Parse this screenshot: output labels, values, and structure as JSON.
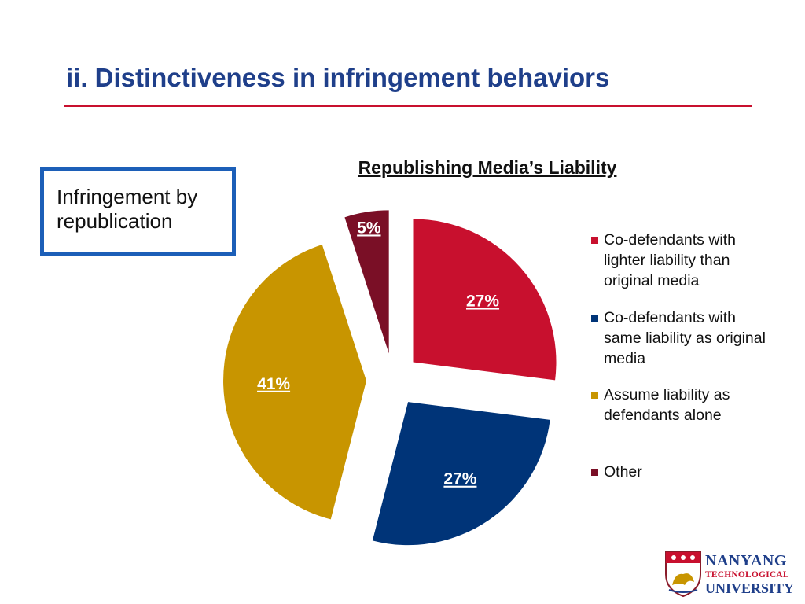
{
  "slide": {
    "title": "ii.   Distinctiveness in infringement behaviors",
    "callout_text": "Infringement by republication",
    "logo": {
      "line1": "NANYANG",
      "line2": "TECHNOLOGICAL",
      "line3": "UNIVERSITY"
    }
  },
  "chart_data": {
    "type": "pie",
    "title": "Republishing Media’s Liability",
    "legend_position": "right",
    "slices": [
      {
        "name": "Co-defendants with lighter liability than original media",
        "value": 27,
        "label": "27%",
        "color": "#c8102e"
      },
      {
        "name": "Co-defendants with same liability as original media",
        "value": 27,
        "label": "27%",
        "color": "#003478"
      },
      {
        "name": "Assume liability as defendants alone",
        "value": 41,
        "label": "41%",
        "color": "#c89500"
      },
      {
        "name": "Other",
        "value": 5,
        "label": "5%",
        "color": "#7a0f26"
      }
    ]
  }
}
